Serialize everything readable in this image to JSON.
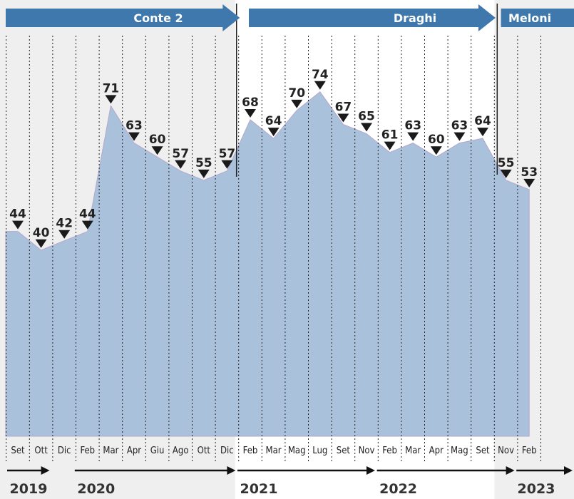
{
  "chart_data": {
    "type": "area",
    "categories": [
      "Set",
      "Ott",
      "Dic",
      "Feb",
      "Mar",
      "Apr",
      "Giu",
      "Ago",
      "Ott",
      "Dic",
      "Feb",
      "Mar",
      "Mag",
      "Lug",
      "Set",
      "Nov",
      "Feb",
      "Mar",
      "Apr",
      "Mag",
      "Set",
      "Nov",
      "Feb"
    ],
    "values": [
      44,
      40,
      42,
      44,
      71,
      63,
      60,
      57,
      55,
      57,
      68,
      64,
      70,
      74,
      67,
      65,
      61,
      63,
      60,
      63,
      64,
      55,
      53
    ],
    "years": [
      {
        "label": "2019",
        "start": 0,
        "end": 1
      },
      {
        "label": "2020",
        "start": 3,
        "end": 9
      },
      {
        "label": "2021",
        "start": 10,
        "end": 15
      },
      {
        "label": "2022",
        "start": 16,
        "end": 21
      },
      {
        "label": "2023",
        "start": 22,
        "end": 22
      }
    ],
    "governments": [
      {
        "label": "Conte 2",
        "start": 0,
        "end": 9
      },
      {
        "label": "Draghi",
        "start": 10,
        "end": 20
      },
      {
        "label": "Meloni",
        "start": 21,
        "end": 22
      }
    ],
    "ylim": [
      0,
      80
    ],
    "grid": true,
    "colors": {
      "area": "#a9c1db",
      "gov_arrow": "#3f78ad",
      "shading": "#efefef",
      "marker": "#1a1a1a"
    }
  }
}
